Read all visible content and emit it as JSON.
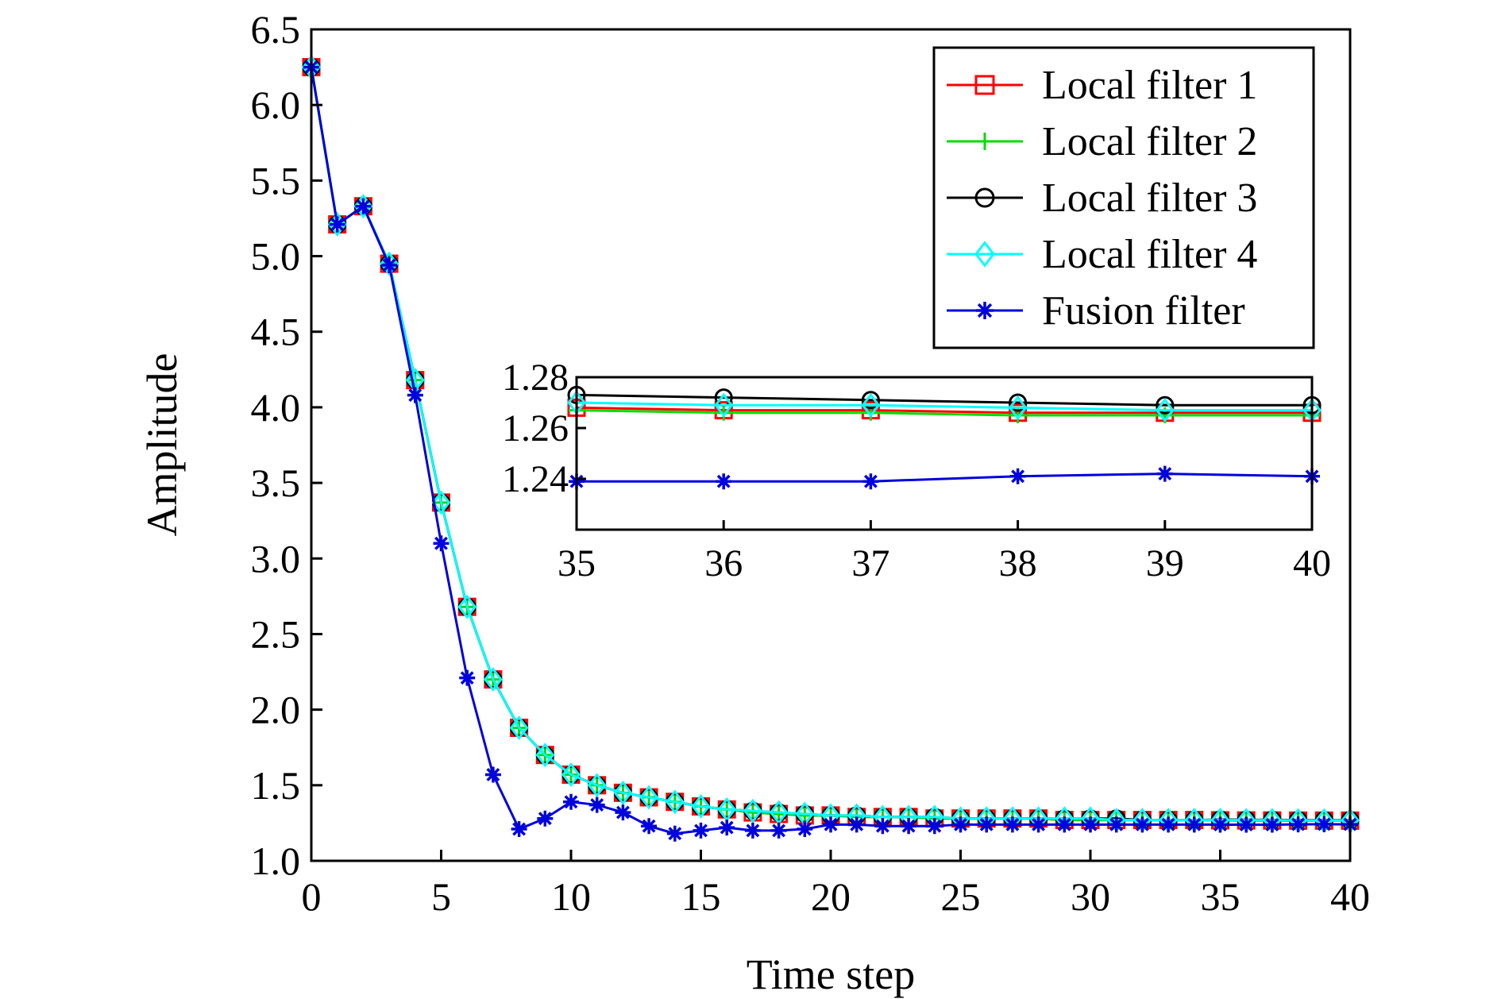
{
  "chart_data": [
    {
      "type": "line",
      "xlabel": "Time step",
      "ylabel": "Amplitude",
      "xlim": [
        0,
        40
      ],
      "ylim": [
        1.0,
        6.5
      ],
      "xticks": [
        "0",
        "5",
        "10",
        "15",
        "20",
        "25",
        "30",
        "35",
        "40"
      ],
      "yticks": [
        "1.0",
        "1.5",
        "2.0",
        "2.5",
        "3.0",
        "3.5",
        "4.0",
        "4.5",
        "5.0",
        "5.5",
        "6.0",
        "6.5"
      ],
      "grid": false,
      "legend_position": "top-right",
      "x": [
        0,
        1,
        2,
        3,
        4,
        5,
        6,
        7,
        8,
        9,
        10,
        11,
        12,
        13,
        14,
        15,
        16,
        17,
        18,
        19,
        20,
        21,
        22,
        23,
        24,
        25,
        26,
        27,
        28,
        29,
        30,
        31,
        32,
        33,
        34,
        35,
        36,
        37,
        38,
        39,
        40
      ],
      "series": [
        {
          "name": "Local filter 1",
          "color": "#ff0000",
          "marker": "square",
          "values": [
            6.25,
            5.21,
            5.33,
            4.95,
            4.18,
            3.37,
            2.68,
            2.2,
            1.88,
            1.7,
            1.57,
            1.5,
            1.45,
            1.42,
            1.39,
            1.36,
            1.34,
            1.32,
            1.31,
            1.3,
            1.3,
            1.29,
            1.29,
            1.29,
            1.28,
            1.28,
            1.28,
            1.28,
            1.28,
            1.27,
            1.27,
            1.27,
            1.27,
            1.27,
            1.27,
            1.268,
            1.267,
            1.267,
            1.266,
            1.266,
            1.266
          ]
        },
        {
          "name": "Local filter 2",
          "color": "#00dd00",
          "marker": "plus",
          "values": [
            6.25,
            5.21,
            5.33,
            4.95,
            4.18,
            3.37,
            2.68,
            2.2,
            1.88,
            1.7,
            1.57,
            1.5,
            1.45,
            1.42,
            1.39,
            1.36,
            1.34,
            1.32,
            1.31,
            1.3,
            1.3,
            1.29,
            1.29,
            1.29,
            1.28,
            1.28,
            1.28,
            1.28,
            1.28,
            1.27,
            1.27,
            1.27,
            1.27,
            1.27,
            1.27,
            1.267,
            1.266,
            1.266,
            1.265,
            1.265,
            1.265
          ]
        },
        {
          "name": "Local filter 3",
          "color": "#000000",
          "marker": "circle",
          "values": [
            6.25,
            5.21,
            5.33,
            4.95,
            4.18,
            3.37,
            2.68,
            2.2,
            1.88,
            1.7,
            1.57,
            1.5,
            1.45,
            1.42,
            1.39,
            1.36,
            1.34,
            1.33,
            1.32,
            1.31,
            1.3,
            1.3,
            1.29,
            1.29,
            1.29,
            1.28,
            1.28,
            1.28,
            1.28,
            1.28,
            1.28,
            1.28,
            1.27,
            1.27,
            1.27,
            1.273,
            1.272,
            1.271,
            1.27,
            1.269,
            1.269
          ]
        },
        {
          "name": "Local filter 4",
          "color": "#00ffff",
          "marker": "diamond",
          "values": [
            6.25,
            5.21,
            5.33,
            4.95,
            4.18,
            3.37,
            2.68,
            2.2,
            1.88,
            1.7,
            1.57,
            1.5,
            1.45,
            1.42,
            1.39,
            1.36,
            1.34,
            1.33,
            1.32,
            1.31,
            1.3,
            1.3,
            1.29,
            1.29,
            1.29,
            1.28,
            1.28,
            1.28,
            1.28,
            1.28,
            1.28,
            1.27,
            1.27,
            1.27,
            1.27,
            1.27,
            1.269,
            1.269,
            1.268,
            1.267,
            1.267
          ]
        },
        {
          "name": "Fusion filter",
          "color": "#0000dd",
          "marker": "asterisk",
          "values": [
            6.25,
            5.21,
            5.33,
            4.94,
            4.08,
            3.1,
            2.21,
            1.57,
            1.21,
            1.28,
            1.39,
            1.37,
            1.32,
            1.23,
            1.18,
            1.2,
            1.22,
            1.2,
            1.2,
            1.21,
            1.24,
            1.24,
            1.23,
            1.23,
            1.23,
            1.24,
            1.24,
            1.24,
            1.24,
            1.24,
            1.24,
            1.24,
            1.24,
            1.24,
            1.24,
            1.239,
            1.239,
            1.239,
            1.241,
            1.242,
            1.241
          ]
        }
      ]
    },
    {
      "type": "line",
      "role": "inset",
      "xlim": [
        35,
        40
      ],
      "ylim": [
        1.22,
        1.28
      ],
      "xticks": [
        "35",
        "36",
        "37",
        "38",
        "39",
        "40"
      ],
      "yticks": [
        "1.24",
        "1.26",
        "1.28"
      ],
      "x": [
        35,
        36,
        37,
        38,
        39,
        40
      ],
      "series": [
        {
          "name": "Local filter 1",
          "color": "#ff0000",
          "marker": "square",
          "values": [
            1.268,
            1.267,
            1.267,
            1.266,
            1.266,
            1.266
          ]
        },
        {
          "name": "Local filter 2",
          "color": "#00dd00",
          "marker": "plus",
          "values": [
            1.267,
            1.266,
            1.266,
            1.265,
            1.265,
            1.265
          ]
        },
        {
          "name": "Local filter 3",
          "color": "#000000",
          "marker": "circle",
          "values": [
            1.273,
            1.272,
            1.271,
            1.27,
            1.269,
            1.269
          ]
        },
        {
          "name": "Local filter 4",
          "color": "#00ffff",
          "marker": "diamond",
          "values": [
            1.27,
            1.269,
            1.269,
            1.268,
            1.267,
            1.267
          ]
        },
        {
          "name": "Fusion filter",
          "color": "#0000dd",
          "marker": "asterisk",
          "values": [
            1.239,
            1.239,
            1.239,
            1.241,
            1.242,
            1.241
          ]
        }
      ]
    }
  ]
}
